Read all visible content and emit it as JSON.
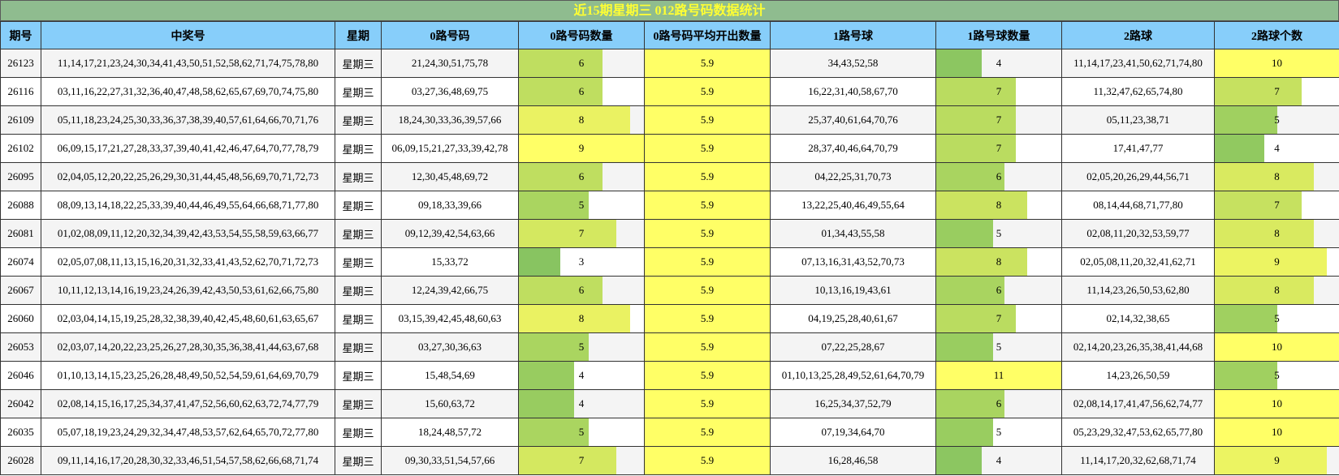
{
  "title": "近15期星期三 012路号码数据统计",
  "headers": [
    "期号",
    "中奖号",
    "星期",
    "0路号码",
    "0路号码数量",
    "0路号码平均开出数量",
    "1路号球",
    "1路号球数量",
    "2路球",
    "2路球个数"
  ],
  "bar_max": {
    "c0": 9,
    "c1": 11,
    "c2": 10
  },
  "rows": [
    {
      "issue": "26123",
      "numbers": "11,14,17,21,23,24,30,34,41,43,50,51,52,58,62,71,74,75,78,80",
      "weekday": "星期三",
      "road0": "21,24,30,51,75,78",
      "c0": "6",
      "avg": "5.9",
      "road1": "34,43,52,58",
      "c1": "4",
      "road2": "11,14,17,23,41,50,62,71,74,80",
      "c2": "10"
    },
    {
      "issue": "26116",
      "numbers": "03,11,16,22,27,31,32,36,40,47,48,58,62,65,67,69,70,74,75,80",
      "weekday": "星期三",
      "road0": "03,27,36,48,69,75",
      "c0": "6",
      "avg": "5.9",
      "road1": "16,22,31,40,58,67,70",
      "c1": "7",
      "road2": "11,32,47,62,65,74,80",
      "c2": "7"
    },
    {
      "issue": "26109",
      "numbers": "05,11,18,23,24,25,30,33,36,37,38,39,40,57,61,64,66,70,71,76",
      "weekday": "星期三",
      "road0": "18,24,30,33,36,39,57,66",
      "c0": "8",
      "avg": "5.9",
      "road1": "25,37,40,61,64,70,76",
      "c1": "7",
      "road2": "05,11,23,38,71",
      "c2": "5"
    },
    {
      "issue": "26102",
      "numbers": "06,09,15,17,21,27,28,33,37,39,40,41,42,46,47,64,70,77,78,79",
      "weekday": "星期三",
      "road0": "06,09,15,21,27,33,39,42,78",
      "c0": "9",
      "avg": "5.9",
      "road1": "28,37,40,46,64,70,79",
      "c1": "7",
      "road2": "17,41,47,77",
      "c2": "4"
    },
    {
      "issue": "26095",
      "numbers": "02,04,05,12,20,22,25,26,29,30,31,44,45,48,56,69,70,71,72,73",
      "weekday": "星期三",
      "road0": "12,30,45,48,69,72",
      "c0": "6",
      "avg": "5.9",
      "road1": "04,22,25,31,70,73",
      "c1": "6",
      "road2": "02,05,20,26,29,44,56,71",
      "c2": "8"
    },
    {
      "issue": "26088",
      "numbers": "08,09,13,14,18,22,25,33,39,40,44,46,49,55,64,66,68,71,77,80",
      "weekday": "星期三",
      "road0": "09,18,33,39,66",
      "c0": "5",
      "avg": "5.9",
      "road1": "13,22,25,40,46,49,55,64",
      "c1": "8",
      "road2": "08,14,44,68,71,77,80",
      "c2": "7"
    },
    {
      "issue": "26081",
      "numbers": "01,02,08,09,11,12,20,32,34,39,42,43,53,54,55,58,59,63,66,77",
      "weekday": "星期三",
      "road0": "09,12,39,42,54,63,66",
      "c0": "7",
      "avg": "5.9",
      "road1": "01,34,43,55,58",
      "c1": "5",
      "road2": "02,08,11,20,32,53,59,77",
      "c2": "8"
    },
    {
      "issue": "26074",
      "numbers": "02,05,07,08,11,13,15,16,20,31,32,33,41,43,52,62,70,71,72,73",
      "weekday": "星期三",
      "road0": "15,33,72",
      "c0": "3",
      "avg": "5.9",
      "road1": "07,13,16,31,43,52,70,73",
      "c1": "8",
      "road2": "02,05,08,11,20,32,41,62,71",
      "c2": "9"
    },
    {
      "issue": "26067",
      "numbers": "10,11,12,13,14,16,19,23,24,26,39,42,43,50,53,61,62,66,75,80",
      "weekday": "星期三",
      "road0": "12,24,39,42,66,75",
      "c0": "6",
      "avg": "5.9",
      "road1": "10,13,16,19,43,61",
      "c1": "6",
      "road2": "11,14,23,26,50,53,62,80",
      "c2": "8"
    },
    {
      "issue": "26060",
      "numbers": "02,03,04,14,15,19,25,28,32,38,39,40,42,45,48,60,61,63,65,67",
      "weekday": "星期三",
      "road0": "03,15,39,42,45,48,60,63",
      "c0": "8",
      "avg": "5.9",
      "road1": "04,19,25,28,40,61,67",
      "c1": "7",
      "road2": "02,14,32,38,65",
      "c2": "5"
    },
    {
      "issue": "26053",
      "numbers": "02,03,07,14,20,22,23,25,26,27,28,30,35,36,38,41,44,63,67,68",
      "weekday": "星期三",
      "road0": "03,27,30,36,63",
      "c0": "5",
      "avg": "5.9",
      "road1": "07,22,25,28,67",
      "c1": "5",
      "road2": "02,14,20,23,26,35,38,41,44,68",
      "c2": "10"
    },
    {
      "issue": "26046",
      "numbers": "01,10,13,14,15,23,25,26,28,48,49,50,52,54,59,61,64,69,70,79",
      "weekday": "星期三",
      "road0": "15,48,54,69",
      "c0": "4",
      "avg": "5.9",
      "road1": "01,10,13,25,28,49,52,61,64,70,79",
      "c1": "11",
      "road2": "14,23,26,50,59",
      "c2": "5"
    },
    {
      "issue": "26042",
      "numbers": "02,08,14,15,16,17,25,34,37,41,47,52,56,60,62,63,72,74,77,79",
      "weekday": "星期三",
      "road0": "15,60,63,72",
      "c0": "4",
      "avg": "5.9",
      "road1": "16,25,34,37,52,79",
      "c1": "6",
      "road2": "02,08,14,17,41,47,56,62,74,77",
      "c2": "10"
    },
    {
      "issue": "26035",
      "numbers": "05,07,18,19,23,24,29,32,34,47,48,53,57,62,64,65,70,72,77,80",
      "weekday": "星期三",
      "road0": "18,24,48,57,72",
      "c0": "5",
      "avg": "5.9",
      "road1": "07,19,34,64,70",
      "c1": "5",
      "road2": "05,23,29,32,47,53,62,65,77,80",
      "c2": "10"
    },
    {
      "issue": "26028",
      "numbers": "09,11,14,16,17,20,28,30,32,33,46,51,54,57,58,62,66,68,71,74",
      "weekday": "星期三",
      "road0": "09,30,33,51,54,57,66",
      "c0": "7",
      "avg": "5.9",
      "road1": "16,28,46,58",
      "c1": "4",
      "road2": "11,14,17,20,32,62,68,71,74",
      "c2": "9"
    }
  ]
}
